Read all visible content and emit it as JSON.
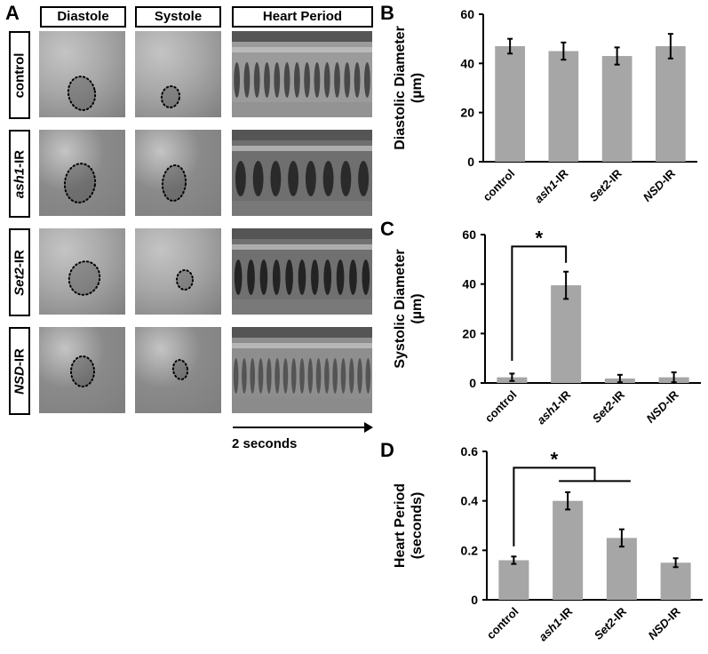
{
  "panelA": {
    "letter": "A",
    "column_headers": [
      "Diastole",
      "Systole",
      "Heart Period"
    ],
    "rows": [
      {
        "label_italic": "",
        "label_plain": "control"
      },
      {
        "label_italic": "ash1",
        "label_plain": "-IR"
      },
      {
        "label_italic": "Set2",
        "label_plain": "-IR"
      },
      {
        "label_italic": "NSD",
        "label_plain": "-IR"
      }
    ],
    "scale_label": "2 seconds"
  },
  "chart_data": [
    {
      "panel": "B",
      "type": "bar",
      "categories": [
        "control",
        "ash1-IR",
        "Set2-IR",
        "NSD-IR"
      ],
      "values": [
        47,
        45,
        43,
        47
      ],
      "errors": [
        3,
        3.5,
        3.5,
        5
      ],
      "ylabel": "Diastolic Diameter (µm)",
      "ylabel_line1": "Diastolic Diameter",
      "ylabel_line2": "(µm)",
      "ylim": [
        0,
        60
      ],
      "yticks": [
        0,
        20,
        40,
        60
      ],
      "significance": [],
      "bar_color": "#a6a6a6"
    },
    {
      "panel": "C",
      "type": "bar",
      "categories": [
        "control",
        "ash1-IR",
        "Set2-IR",
        "NSD-IR"
      ],
      "values": [
        2.3,
        39.5,
        1.8,
        2.3
      ],
      "errors": [
        1.5,
        5.5,
        1.5,
        2
      ],
      "ylabel": "Systolic Diameter (µm)",
      "ylabel_line1": "Systolic Diameter",
      "ylabel_line2": "(µm)",
      "ylim": [
        0,
        60
      ],
      "yticks": [
        0,
        20,
        40,
        60
      ],
      "significance": [
        {
          "from": "control",
          "to": [
            "ash1-IR"
          ],
          "label": "*"
        }
      ],
      "bar_color": "#a6a6a6"
    },
    {
      "panel": "D",
      "type": "bar",
      "categories": [
        "control",
        "ash1-IR",
        "Set2-IR",
        "NSD-IR"
      ],
      "values": [
        0.16,
        0.4,
        0.25,
        0.15
      ],
      "errors": [
        0.015,
        0.035,
        0.035,
        0.018
      ],
      "ylabel": "Heart Period (seconds)",
      "ylabel_line1": "Heart Period",
      "ylabel_line2": "(seconds)",
      "ylim": [
        0,
        0.6
      ],
      "yticks": [
        0,
        0.2,
        0.4,
        0.6
      ],
      "ytick_labels": [
        "0",
        "0.2",
        "0.4",
        "0.6"
      ],
      "significance": [
        {
          "from": "control",
          "to": [
            "ash1-IR",
            "Set2-IR"
          ],
          "label": "*"
        }
      ],
      "bar_color": "#a6a6a6"
    }
  ]
}
